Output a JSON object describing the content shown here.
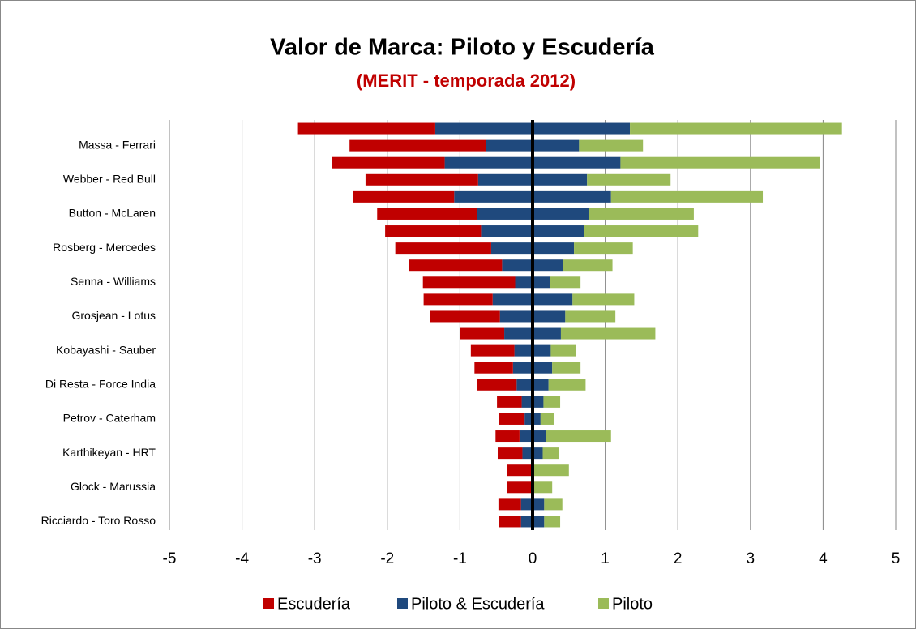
{
  "chart_data": {
    "type": "diverging-bar",
    "title": "Valor de Marca: Piloto y Escudería",
    "subtitle": "(MERIT - temporada 2012)",
    "categories": [
      null,
      "Massa - Ferrari",
      null,
      "Webber - Red Bull",
      null,
      "Button - McLaren",
      null,
      "Rosberg - Mercedes",
      null,
      "Senna - Williams",
      null,
      "Grosjean - Lotus",
      null,
      "Kobayashi - Sauber",
      null,
      "Di Resta - Force India",
      null,
      "Petrov - Caterham",
      null,
      "Karthikeyan - HRT",
      null,
      "Glock - Marussia",
      null,
      "Ricciardo - Toro Rosso"
    ],
    "series": [
      {
        "name": "Escudería",
        "color": "#c00000",
        "values": [
          -1.89,
          -1.88,
          -1.55,
          -1.55,
          -1.39,
          -1.37,
          -1.32,
          -1.32,
          -1.28,
          -1.27,
          -0.95,
          -0.96,
          -0.61,
          -0.6,
          -0.53,
          -0.54,
          -0.34,
          -0.35,
          -0.33,
          -0.34,
          -0.35,
          -0.35,
          -0.31,
          -0.3
        ]
      },
      {
        "name": "Piloto & Escudería",
        "color": "#1f497d",
        "values": [
          1.34,
          0.64,
          1.21,
          0.75,
          1.08,
          0.77,
          0.71,
          0.57,
          0.42,
          0.24,
          0.55,
          0.45,
          0.39,
          0.25,
          0.27,
          0.22,
          0.15,
          0.11,
          0.18,
          0.14,
          0,
          0,
          0.16,
          0.16
        ]
      },
      {
        "name": "Piloto",
        "color": "#9bbb59",
        "values": [
          2.92,
          0.88,
          2.75,
          1.15,
          2.09,
          1.45,
          1.57,
          0.81,
          0.68,
          0.42,
          0.85,
          0.69,
          1.3,
          0.35,
          0.39,
          0.51,
          0.23,
          0.18,
          0.9,
          0.22,
          0.5,
          0.27,
          0.25,
          0.22
        ]
      }
    ],
    "xlim": [
      -5,
      5
    ],
    "xticks": [
      -5,
      -4,
      -3,
      -2,
      -1,
      0,
      1,
      2,
      3,
      4,
      5
    ],
    "grid": true,
    "legend": "bottom"
  }
}
